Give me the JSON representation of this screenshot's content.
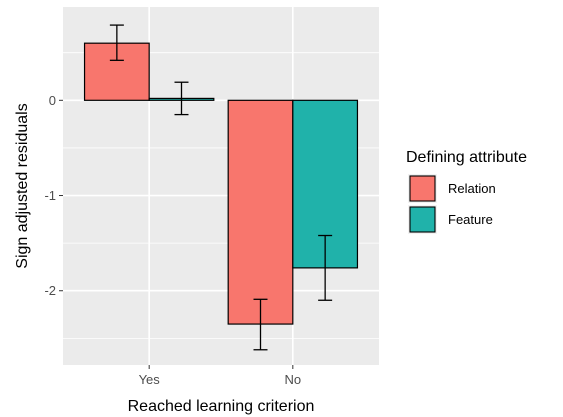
{
  "chart_data": {
    "type": "bar",
    "title": "",
    "xlabel": "Reached learning criterion",
    "ylabel": "Sign adjusted residuals",
    "categories": [
      "Yes",
      "No"
    ],
    "ylim": [
      -2.78,
      0.98
    ],
    "yticks": [
      0,
      -1,
      -2
    ],
    "ytick_labels": [
      "0",
      "-1",
      "-2"
    ],
    "grid": true,
    "legend": {
      "title": "Defining attribute",
      "position": "right"
    },
    "series": [
      {
        "name": "Relation",
        "color": "#F8766D",
        "values": [
          0.6,
          -2.35
        ],
        "error_low": [
          0.42,
          -2.62
        ],
        "error_high": [
          0.79,
          -2.09
        ]
      },
      {
        "name": "Feature",
        "color": "#20B2AA",
        "values": [
          0.02,
          -1.76
        ],
        "error_low": [
          -0.15,
          -2.1
        ],
        "error_high": [
          0.19,
          -1.42
        ]
      }
    ]
  }
}
